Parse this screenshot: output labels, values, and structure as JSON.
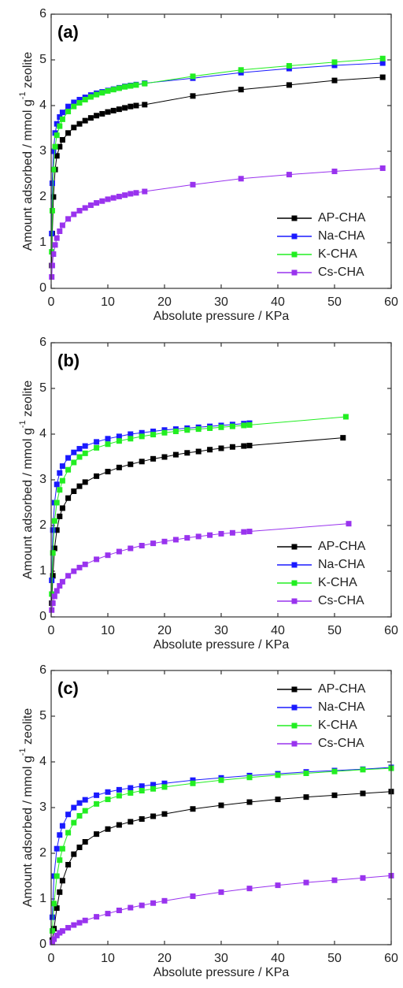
{
  "chart_data": [
    {
      "type": "line",
      "panel_label": "(a)",
      "xlabel": "Absolute pressure / KPa",
      "ylabel": "Amount adsorbed / mmol g",
      "ylabel_sup": "-1",
      "ylabel_end": " zeolite",
      "xlim": [
        0,
        60
      ],
      "xticks": [
        0,
        10,
        20,
        30,
        40,
        50,
        60
      ],
      "ylim": [
        0,
        6
      ],
      "yticks": [
        0,
        1,
        2,
        3,
        4,
        5,
        6
      ],
      "legend": "lower right",
      "series": [
        {
          "name": "AP-CHA",
          "color": "#000000",
          "x": [
            0.1,
            0.2,
            0.4,
            0.7,
            1,
            1.5,
            2,
            3,
            4,
            5,
            6,
            7,
            8,
            9,
            10,
            11,
            12,
            13,
            14,
            15,
            16.5,
            25,
            33.5,
            42,
            50,
            58.5
          ],
          "values": [
            0.5,
            1.2,
            2.0,
            2.6,
            2.9,
            3.1,
            3.25,
            3.4,
            3.52,
            3.6,
            3.67,
            3.73,
            3.78,
            3.82,
            3.86,
            3.89,
            3.92,
            3.95,
            3.98,
            4.0,
            4.02,
            4.21,
            4.35,
            4.45,
            4.55,
            4.62
          ]
        },
        {
          "name": "Na-CHA",
          "color": "#1a1aff",
          "x": [
            0.1,
            0.2,
            0.4,
            0.7,
            1,
            1.5,
            2,
            3,
            4,
            5,
            6,
            7,
            8,
            9,
            10,
            11,
            12,
            13,
            14,
            15,
            16.5,
            25,
            33.5,
            42,
            50,
            58.5
          ],
          "values": [
            1.2,
            2.3,
            3.0,
            3.4,
            3.6,
            3.75,
            3.85,
            3.98,
            4.07,
            4.13,
            4.18,
            4.23,
            4.27,
            4.3,
            4.33,
            4.36,
            4.39,
            4.42,
            4.44,
            4.46,
            4.49,
            4.6,
            4.72,
            4.81,
            4.88,
            4.93
          ]
        },
        {
          "name": "K-CHA",
          "color": "#22ee22",
          "x": [
            0.1,
            0.2,
            0.4,
            0.7,
            1,
            1.5,
            2,
            3,
            4,
            5,
            6,
            7,
            8,
            9,
            10,
            11,
            12,
            13,
            14,
            15,
            16.5,
            25,
            33.5,
            42,
            50,
            58.5
          ],
          "values": [
            0.8,
            1.7,
            2.6,
            3.1,
            3.35,
            3.55,
            3.7,
            3.87,
            3.98,
            4.06,
            4.13,
            4.19,
            4.24,
            4.28,
            4.32,
            4.35,
            4.38,
            4.41,
            4.43,
            4.45,
            4.48,
            4.64,
            4.78,
            4.87,
            4.95,
            5.03
          ]
        },
        {
          "name": "Cs-CHA",
          "color": "#9933ee",
          "x": [
            0.1,
            0.2,
            0.4,
            0.7,
            1,
            1.5,
            2,
            3,
            4,
            5,
            6,
            7,
            8,
            9,
            10,
            11,
            12,
            13,
            14,
            15,
            16.5,
            25,
            33.5,
            42,
            50,
            58.5
          ],
          "values": [
            0.25,
            0.5,
            0.75,
            0.95,
            1.1,
            1.25,
            1.38,
            1.52,
            1.62,
            1.7,
            1.76,
            1.82,
            1.87,
            1.91,
            1.95,
            1.98,
            2.01,
            2.04,
            2.07,
            2.09,
            2.12,
            2.27,
            2.4,
            2.49,
            2.56,
            2.63
          ]
        }
      ]
    },
    {
      "type": "line",
      "panel_label": "(b)",
      "xlabel": "Absolute pressure / KPa",
      "ylabel": "Amount adsorbed / mmol g",
      "ylabel_sup": "-1",
      "ylabel_end": " zeolite",
      "xlim": [
        0,
        60
      ],
      "xticks": [
        0,
        10,
        20,
        30,
        40,
        50,
        60
      ],
      "ylim": [
        0,
        6
      ],
      "yticks": [
        0,
        1,
        2,
        3,
        4,
        5,
        6
      ],
      "legend": "lower right",
      "series": [
        {
          "name": "AP-CHA",
          "color": "#000000",
          "x": [
            0.1,
            0.3,
            0.6,
            1,
            1.5,
            2,
            3,
            4,
            5,
            6,
            8,
            10,
            12,
            14,
            16,
            18,
            20,
            22,
            24,
            26,
            28,
            30,
            32,
            34,
            35,
            51.5
          ],
          "values": [
            0.3,
            0.9,
            1.5,
            1.9,
            2.2,
            2.38,
            2.6,
            2.75,
            2.86,
            2.95,
            3.08,
            3.18,
            3.27,
            3.34,
            3.4,
            3.46,
            3.5,
            3.55,
            3.59,
            3.62,
            3.66,
            3.69,
            3.72,
            3.74,
            3.75,
            3.92
          ]
        },
        {
          "name": "Na-CHA",
          "color": "#1a1aff",
          "x": [
            0.1,
            0.3,
            0.6,
            1,
            1.5,
            2,
            3,
            4,
            5,
            6,
            8,
            10,
            12,
            14,
            16,
            18,
            20,
            22,
            24,
            26,
            28,
            30,
            32,
            34,
            35
          ],
          "values": [
            0.8,
            1.9,
            2.5,
            2.9,
            3.15,
            3.3,
            3.48,
            3.6,
            3.68,
            3.74,
            3.83,
            3.9,
            3.95,
            4.0,
            4.03,
            4.06,
            4.09,
            4.11,
            4.13,
            4.15,
            4.17,
            4.19,
            4.21,
            4.23,
            4.24
          ]
        },
        {
          "name": "K-CHA",
          "color": "#22ee22",
          "x": [
            0.1,
            0.3,
            0.6,
            1,
            1.5,
            2,
            3,
            4,
            5,
            6,
            8,
            10,
            12,
            14,
            16,
            18,
            20,
            22,
            24,
            26,
            28,
            30,
            32,
            34,
            35,
            52
          ],
          "values": [
            0.5,
            1.4,
            2.1,
            2.5,
            2.78,
            2.98,
            3.22,
            3.38,
            3.5,
            3.58,
            3.7,
            3.78,
            3.85,
            3.9,
            3.95,
            3.99,
            4.03,
            4.06,
            4.09,
            4.11,
            4.13,
            4.15,
            4.17,
            4.19,
            4.2,
            4.38
          ]
        },
        {
          "name": "Cs-CHA",
          "color": "#9933ee",
          "x": [
            0.1,
            0.3,
            0.6,
            1,
            1.5,
            2,
            3,
            4,
            5,
            6,
            8,
            10,
            12,
            14,
            16,
            18,
            20,
            22,
            24,
            26,
            28,
            30,
            32,
            34,
            35,
            52.5
          ],
          "values": [
            0.15,
            0.3,
            0.45,
            0.57,
            0.68,
            0.77,
            0.9,
            1.0,
            1.08,
            1.15,
            1.26,
            1.35,
            1.43,
            1.5,
            1.56,
            1.61,
            1.65,
            1.69,
            1.73,
            1.76,
            1.79,
            1.82,
            1.84,
            1.86,
            1.87,
            2.04
          ]
        }
      ]
    },
    {
      "type": "line",
      "panel_label": "(c)",
      "xlabel": "Absolute pressure / KPa",
      "ylabel": "Amount adsorbed / mmol g",
      "ylabel_sup": "-1",
      "ylabel_end": " zeolite",
      "xlim": [
        0,
        60
      ],
      "xticks": [
        0,
        10,
        20,
        30,
        40,
        50,
        60
      ],
      "ylim": [
        0,
        6
      ],
      "yticks": [
        0,
        1,
        2,
        3,
        4,
        5,
        6
      ],
      "legend": "upper right",
      "series": [
        {
          "name": "AP-CHA",
          "color": "#000000",
          "x": [
            0.2,
            0.5,
            1,
            1.5,
            2,
            3,
            4,
            5,
            6,
            8,
            10,
            12,
            14,
            16,
            18,
            20,
            25,
            30,
            35,
            40,
            45,
            50,
            55,
            60
          ],
          "values": [
            0.1,
            0.35,
            0.8,
            1.15,
            1.4,
            1.75,
            1.98,
            2.13,
            2.25,
            2.42,
            2.53,
            2.62,
            2.69,
            2.75,
            2.81,
            2.86,
            2.97,
            3.05,
            3.12,
            3.18,
            3.23,
            3.27,
            3.31,
            3.35
          ]
        },
        {
          "name": "Na-CHA",
          "color": "#1a1aff",
          "x": [
            0.2,
            0.5,
            1,
            1.5,
            2,
            3,
            4,
            5,
            6,
            8,
            10,
            12,
            14,
            16,
            18,
            20,
            25,
            30,
            35,
            40,
            45,
            50,
            55,
            60
          ],
          "values": [
            0.6,
            1.5,
            2.1,
            2.4,
            2.6,
            2.85,
            3.0,
            3.1,
            3.17,
            3.27,
            3.34,
            3.39,
            3.43,
            3.47,
            3.5,
            3.53,
            3.6,
            3.65,
            3.7,
            3.74,
            3.78,
            3.81,
            3.84,
            3.88
          ]
        },
        {
          "name": "K-CHA",
          "color": "#22ee22",
          "x": [
            0.2,
            0.5,
            1,
            1.5,
            2,
            3,
            4,
            5,
            6,
            8,
            10,
            12,
            14,
            16,
            18,
            20,
            25,
            30,
            35,
            40,
            45,
            50,
            55,
            60
          ],
          "values": [
            0.3,
            0.9,
            1.5,
            1.85,
            2.1,
            2.45,
            2.67,
            2.82,
            2.93,
            3.08,
            3.18,
            3.26,
            3.32,
            3.37,
            3.41,
            3.45,
            3.53,
            3.6,
            3.66,
            3.71,
            3.75,
            3.79,
            3.83,
            3.86
          ]
        },
        {
          "name": "Cs-CHA",
          "color": "#9933ee",
          "x": [
            0.2,
            0.5,
            1,
            1.5,
            2,
            3,
            4,
            5,
            6,
            8,
            10,
            12,
            14,
            16,
            18,
            20,
            25,
            30,
            35,
            40,
            45,
            50,
            55,
            60
          ],
          "values": [
            0.05,
            0.12,
            0.2,
            0.26,
            0.3,
            0.37,
            0.43,
            0.48,
            0.53,
            0.61,
            0.68,
            0.75,
            0.81,
            0.86,
            0.91,
            0.96,
            1.06,
            1.15,
            1.23,
            1.3,
            1.36,
            1.41,
            1.46,
            1.51
          ]
        }
      ]
    }
  ]
}
